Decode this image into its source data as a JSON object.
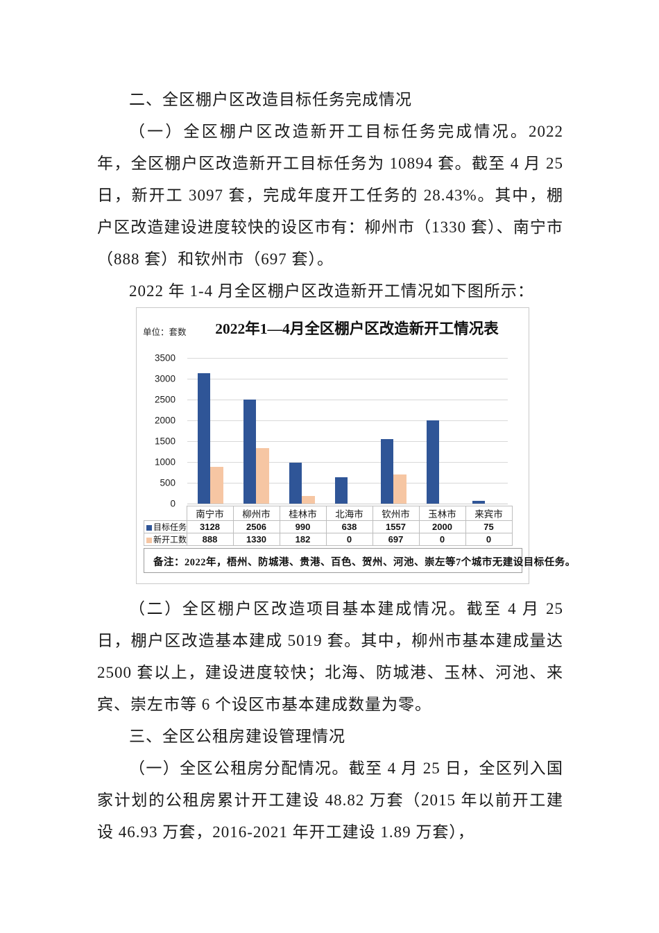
{
  "document": {
    "heading_1": "二、全区棚户区改造目标任务完成情况",
    "para_1": "（一）全区棚户区改造新开工目标任务完成情况。2022 年，全区棚户区改造新开工目标任务为 10894 套。截至 4 月 25 日，新开工 3097 套，完成年度开工任务的 28.43%。其中，棚户区改造建设进度较快的设区市有：柳州市（1330 套）、南宁市（888 套）和钦州市（697 套）。",
    "para_2": "2022 年 1-4 月全区棚户区改造新开工情况如下图所示：",
    "para_3": "（二）全区棚户区改造项目基本建成情况。截至 4 月 25 日，棚户区改造基本建成 5019 套。其中，柳州市基本建成量达 2500 套以上，建设进度较快；北海、防城港、玉林、河池、来宾、崇左市等 6 个设区市基本建成数量为零。",
    "heading_2": "三、全区公租房建设管理情况",
    "para_4": "（一）全区公租房分配情况。截至 4 月 25 日，全区列入国家计划的公租房累计开工建设 48.82 万套（2015 年以前开工建设 46.93 万套，2016-2021 年开工建设 1.89 万套），"
  },
  "chart_data": {
    "type": "bar",
    "title": "2022年1—4月全区棚户区改造新开工情况表",
    "unit_label": "单位：套数",
    "categories": [
      "南宁市",
      "柳州市",
      "桂林市",
      "北海市",
      "钦州市",
      "玉林市",
      "来宾市"
    ],
    "series": [
      {
        "key": "target",
        "name": "目标任务",
        "color": "#2F5597",
        "values": [
          3128,
          2506,
          990,
          638,
          1557,
          2000,
          75
        ]
      },
      {
        "key": "new-starts",
        "name": "新开工数",
        "color": "#F6C6A3",
        "values": [
          888,
          1330,
          182,
          0,
          697,
          0,
          0
        ]
      }
    ],
    "xlabel": "",
    "ylabel": "套数",
    "ylim": [
      0,
      3500
    ],
    "ytick_interval": 500,
    "grid": true,
    "legend_position": "table-left",
    "note": "备注：2022年，梧州、防城港、贵港、百色、贺州、河池、崇左等7个城市无建设目标任务。"
  }
}
